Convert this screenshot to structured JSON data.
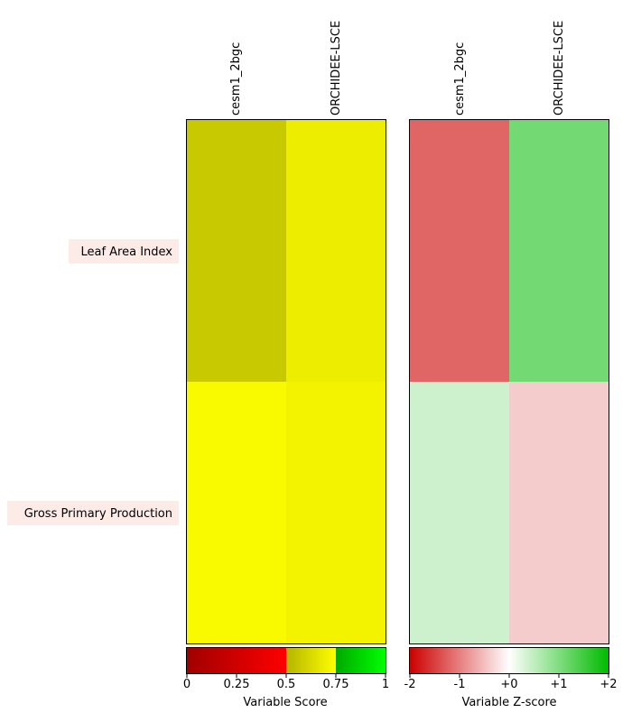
{
  "chart_data": [
    {
      "type": "heatmap",
      "title": "",
      "columns": [
        "cesm1_2bgc",
        "ORCHIDEE-LSCE"
      ],
      "rows": [
        "Leaf Area Index",
        "Gross Primary Production"
      ],
      "values": [
        [
          0.57,
          0.69
        ],
        [
          0.73,
          0.71
        ]
      ],
      "colorbar": {
        "label": "Variable Score",
        "ticks": [
          "0",
          "0.25",
          "0.5",
          "0.75",
          "1"
        ],
        "range": [
          0,
          1
        ],
        "colors": [
          "#a00000",
          "#ff0000",
          "#b4b400",
          "#ffff00",
          "#00aa00",
          "#00ff00"
        ]
      }
    },
    {
      "type": "heatmap",
      "title": "",
      "columns": [
        "cesm1_2bgc",
        "ORCHIDEE-LSCE"
      ],
      "rows": [
        "Leaf Area Index",
        "Gross Primary Production"
      ],
      "values": [
        [
          -1.2,
          1.1
        ],
        [
          0.4,
          -0.4
        ]
      ],
      "colorbar": {
        "label": "Variable Z-score",
        "ticks": [
          "-2",
          "-1",
          "+0",
          "+1",
          "+2"
        ],
        "range": [
          -2,
          2
        ],
        "colors": [
          "#cc0000",
          "#ffffff",
          "#00bb00"
        ]
      }
    }
  ],
  "row_label_bg": "#fdebe8"
}
